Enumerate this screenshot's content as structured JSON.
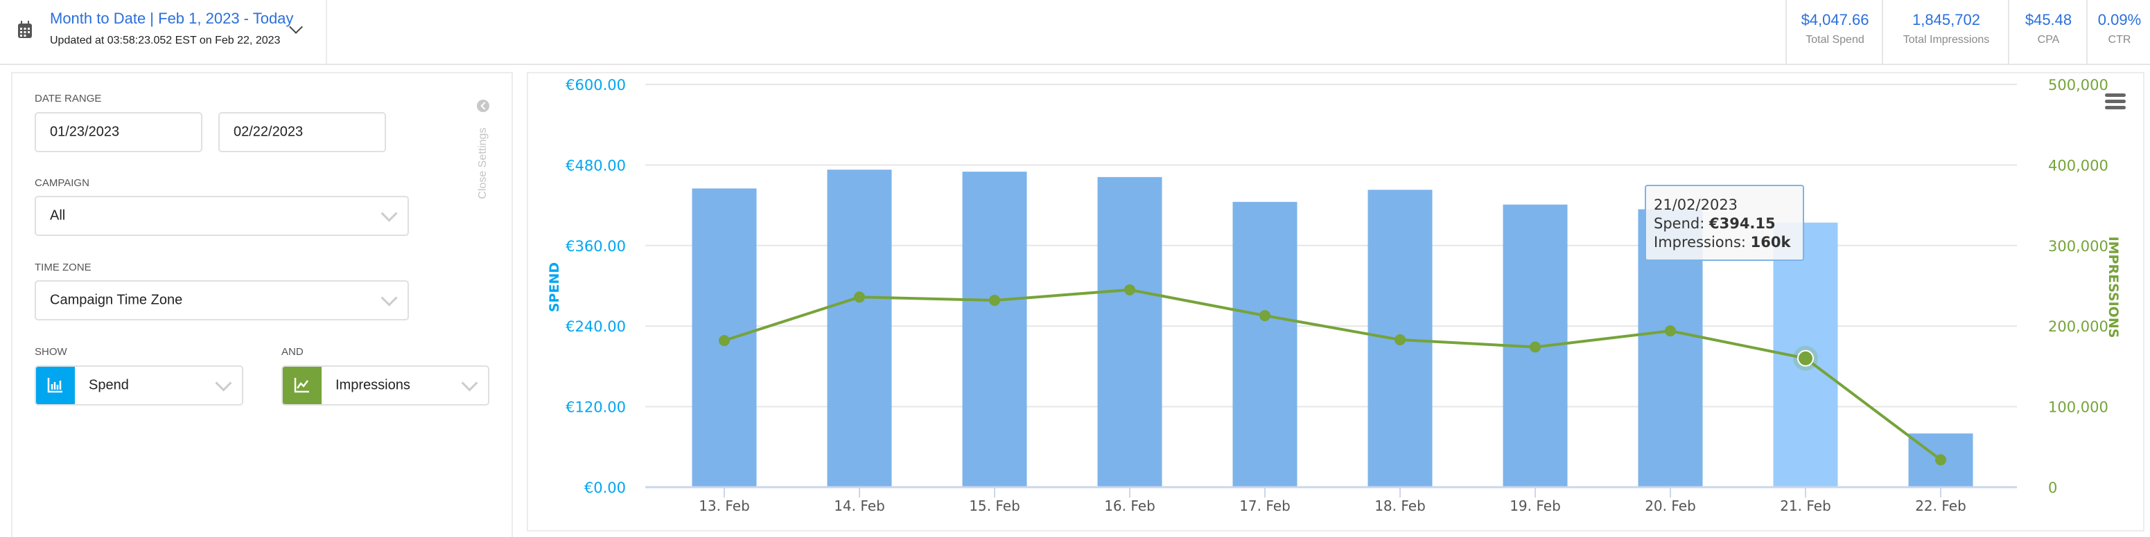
{
  "header": {
    "title": "Month to Date | Feb 1, 2023 - Today",
    "subtitle": "Updated at 03:58:23.052 EST on Feb 22, 2023",
    "stats": [
      {
        "value": "$4,047.66",
        "label": "Total Spend"
      },
      {
        "value": "1,845,702",
        "label": "Total Impressions"
      },
      {
        "value": "$45.48",
        "label": "CPA"
      },
      {
        "value": "0.09%",
        "label": "CTR"
      }
    ]
  },
  "settings": {
    "date_range_label": "DATE RANGE",
    "start_date": "01/23/2023",
    "end_date": "02/22/2023",
    "campaign_label": "CAMPAIGN",
    "campaign_value": "All",
    "timezone_label": "TIME ZONE",
    "timezone_value": "Campaign Time Zone",
    "show_label": "SHOW",
    "show_value": "Spend",
    "and_label": "AND",
    "and_value": "Impressions",
    "close_label": "Close Settings",
    "colors": {
      "spend": "#00a6f0",
      "impressions": "#76a33a"
    }
  },
  "chart_data": {
    "type": "bar",
    "categories": [
      "13. Feb",
      "14. Feb",
      "15. Feb",
      "16. Feb",
      "17. Feb",
      "18. Feb",
      "19. Feb",
      "20. Feb",
      "21. Feb",
      "22. Feb"
    ],
    "series": [
      {
        "name": "Spend",
        "type": "bar",
        "axis": "left",
        "color": "#7cb3ea",
        "values": [
          445,
          473,
          470,
          462,
          425,
          443,
          421,
          414,
          394.15,
          80
        ]
      },
      {
        "name": "Impressions",
        "type": "line",
        "axis": "right",
        "color": "#76a33a",
        "values": [
          182000,
          236000,
          232000,
          245000,
          213000,
          183000,
          174000,
          194000,
          160000,
          34000
        ]
      }
    ],
    "ylabel": "SPEND",
    "y2label": "IMPRESSIONS",
    "ylim": [
      0,
      600
    ],
    "y2lim": [
      0,
      500000
    ],
    "yticks": [
      "€0.00",
      "€120.00",
      "€240.00",
      "€360.00",
      "€480.00",
      "€600.00"
    ],
    "y2ticks": [
      "0",
      "100,000",
      "200,000",
      "300,000",
      "400,000",
      "500,000"
    ],
    "grid": true,
    "highlighted_index": 8,
    "tooltip": {
      "date": "21/02/2023",
      "spend_label": "Spend: ",
      "spend_value": "€394.15",
      "impr_label": "Impressions: ",
      "impr_value": "160k"
    }
  }
}
